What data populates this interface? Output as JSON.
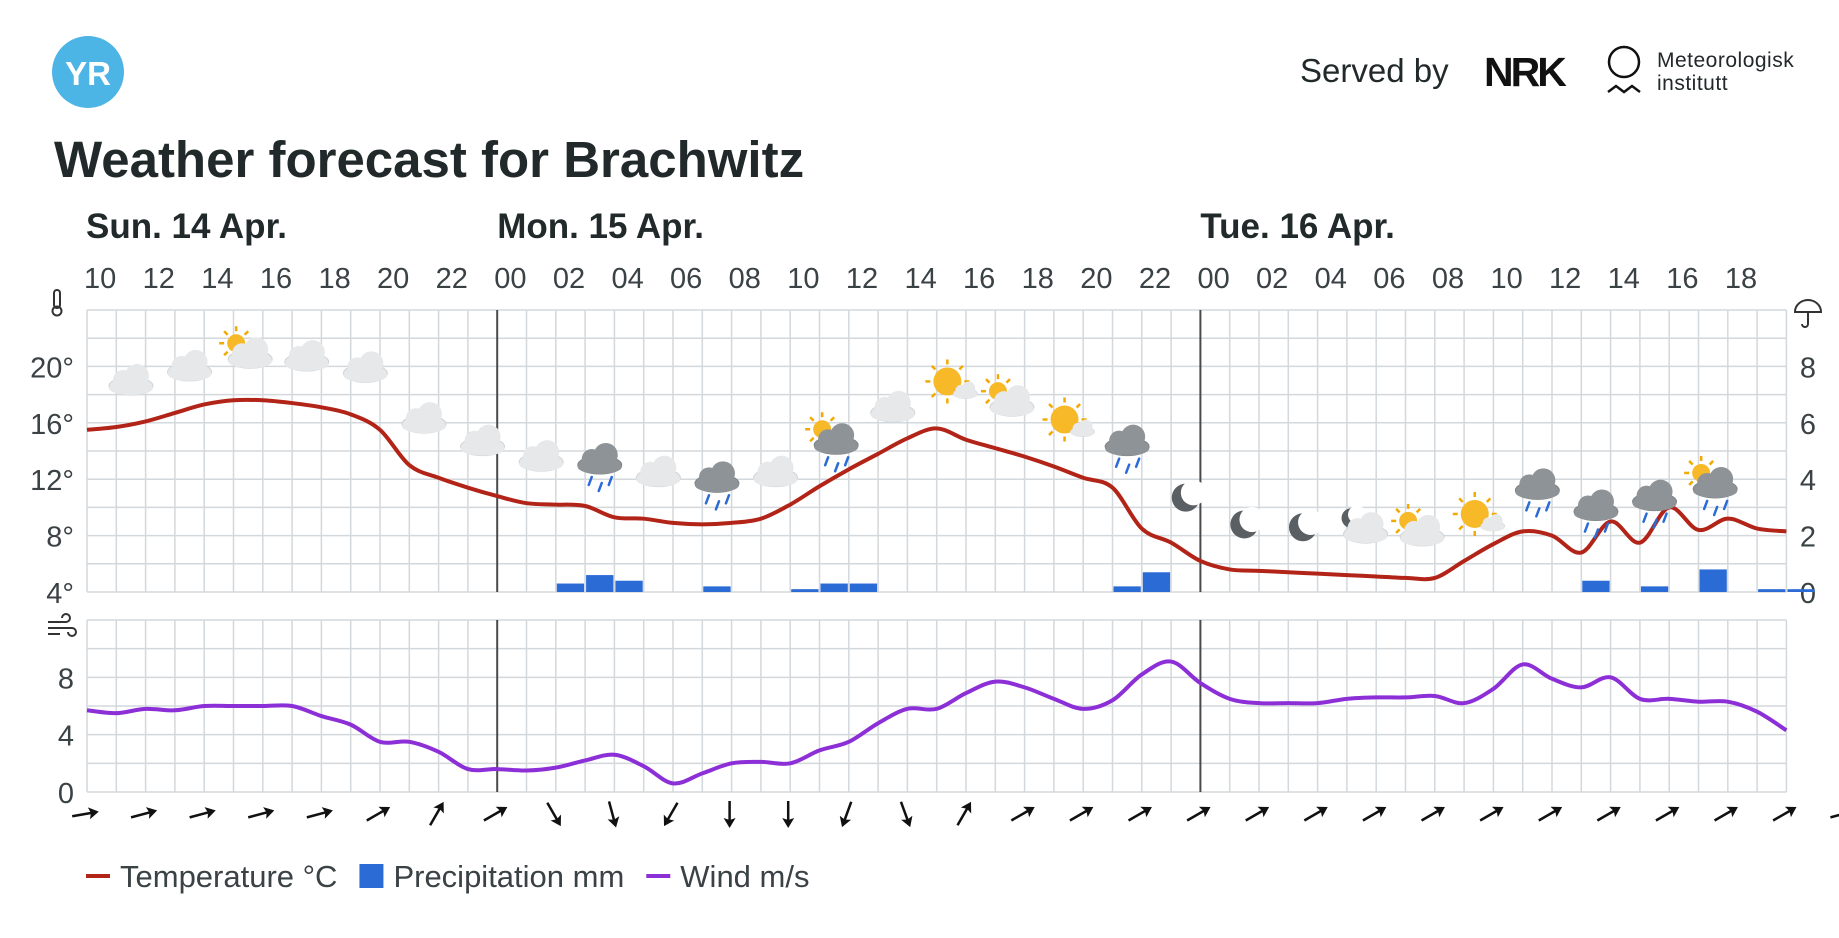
{
  "header": {
    "logo_text": "YR",
    "served_by": "Served by",
    "nrk_logo": "NRK",
    "met_line1": "Meteorologisk",
    "met_line2": "institutt",
    "title": "Weather forecast for Brachwitz"
  },
  "colors": {
    "temperature": "#b22418",
    "precipitation": "#2b6bd6",
    "wind": "#8c2fd6",
    "grid": "#d3d8dc",
    "day_divider": "#4a4a4a",
    "text": "#21292b"
  },
  "chart_data": {
    "type": "line",
    "days": [
      {
        "label": "Sun. 14 Apr.",
        "start_hour": 10
      },
      {
        "label": "Mon. 15 Apr.",
        "start_hour": 24
      },
      {
        "label": "Tue. 16 Apr.",
        "start_hour": 48
      }
    ],
    "hours": [
      10,
      11,
      12,
      13,
      14,
      15,
      16,
      17,
      18,
      19,
      20,
      21,
      22,
      23,
      24,
      25,
      26,
      27,
      28,
      29,
      30,
      31,
      32,
      33,
      34,
      35,
      36,
      37,
      38,
      39,
      40,
      41,
      42,
      43,
      44,
      45,
      46,
      47,
      48,
      49,
      50,
      51,
      52,
      53,
      54,
      55,
      56,
      57,
      58,
      59,
      60,
      61,
      62,
      63,
      64,
      65,
      66,
      67,
      68
    ],
    "hour_tick_labels": [
      {
        "hour": 10,
        "label": "10"
      },
      {
        "hour": 12,
        "label": "12"
      },
      {
        "hour": 14,
        "label": "14"
      },
      {
        "hour": 16,
        "label": "16"
      },
      {
        "hour": 18,
        "label": "18"
      },
      {
        "hour": 20,
        "label": "20"
      },
      {
        "hour": 22,
        "label": "22"
      },
      {
        "hour": 24,
        "label": "00"
      },
      {
        "hour": 26,
        "label": "02"
      },
      {
        "hour": 28,
        "label": "04"
      },
      {
        "hour": 30,
        "label": "06"
      },
      {
        "hour": 32,
        "label": "08"
      },
      {
        "hour": 34,
        "label": "10"
      },
      {
        "hour": 36,
        "label": "12"
      },
      {
        "hour": 38,
        "label": "14"
      },
      {
        "hour": 40,
        "label": "16"
      },
      {
        "hour": 42,
        "label": "18"
      },
      {
        "hour": 44,
        "label": "20"
      },
      {
        "hour": 46,
        "label": "22"
      },
      {
        "hour": 48,
        "label": "00"
      },
      {
        "hour": 50,
        "label": "02"
      },
      {
        "hour": 52,
        "label": "04"
      },
      {
        "hour": 54,
        "label": "06"
      },
      {
        "hour": 56,
        "label": "08"
      },
      {
        "hour": 58,
        "label": "10"
      },
      {
        "hour": 60,
        "label": "12"
      },
      {
        "hour": 62,
        "label": "14"
      },
      {
        "hour": 64,
        "label": "16"
      },
      {
        "hour": 66,
        "label": "18"
      }
    ],
    "temperature": {
      "name": "Temperature °C",
      "y_ticks": [
        "20°",
        "16°",
        "12°",
        "8°",
        "4°"
      ],
      "ylim": [
        4,
        24
      ],
      "values": [
        15.5,
        15.7,
        16.1,
        16.7,
        17.3,
        17.6,
        17.6,
        17.4,
        17.1,
        16.6,
        15.5,
        13.0,
        12.1,
        11.4,
        10.8,
        10.3,
        10.2,
        10.1,
        9.3,
        9.2,
        8.9,
        8.8,
        8.9,
        9.2,
        10.2,
        11.5,
        12.7,
        13.8,
        14.9,
        15.6,
        14.8,
        14.2,
        13.6,
        12.9,
        12.1,
        11.4,
        8.5,
        7.5,
        6.2,
        5.6,
        5.5,
        5.4,
        5.3,
        5.2,
        5.1,
        5.0,
        5.0,
        6.2,
        7.4,
        8.3,
        8.0,
        6.8,
        9.0,
        7.5,
        10.0,
        8.4,
        9.2,
        8.5,
        8.3
      ]
    },
    "precipitation": {
      "name": "Precipitation mm",
      "y_ticks": [
        "8",
        "6",
        "4",
        "2",
        "0"
      ],
      "ylim": [
        0,
        10
      ],
      "values": [
        0,
        0,
        0,
        0,
        0,
        0,
        0,
        0,
        0,
        0,
        0,
        0,
        0,
        0,
        0,
        0,
        0.3,
        0.6,
        0.4,
        0,
        0,
        0.2,
        0,
        0,
        0.1,
        0.3,
        0.3,
        0,
        0,
        0,
        0,
        0,
        0,
        0,
        0,
        0.2,
        0.7,
        0,
        0,
        0,
        0,
        0,
        0,
        0,
        0,
        0,
        0,
        0,
        0,
        0,
        0,
        0.4,
        0,
        0.2,
        0,
        0.8,
        0,
        0.1,
        0.1
      ]
    },
    "wind": {
      "name": "Wind m/s",
      "y_ticks": [
        "8",
        "4",
        "0"
      ],
      "ylim": [
        0,
        12
      ],
      "values": [
        5.7,
        5.5,
        5.8,
        5.7,
        6.0,
        6.0,
        6.0,
        6.0,
        5.3,
        4.7,
        3.5,
        3.5,
        2.8,
        1.6,
        1.6,
        1.5,
        1.7,
        2.2,
        2.6,
        1.8,
        0.6,
        1.3,
        2.0,
        2.1,
        2.0,
        2.9,
        3.5,
        4.8,
        5.8,
        5.8,
        6.9,
        7.7,
        7.3,
        6.5,
        5.8,
        6.4,
        8.2,
        9.1,
        7.6,
        6.5,
        6.2,
        6.2,
        6.2,
        6.5,
        6.6,
        6.6,
        6.7,
        6.2,
        7.2,
        8.9,
        7.9,
        7.3,
        8.0,
        6.5,
        6.5,
        6.3,
        6.3,
        5.6,
        4.3
      ]
    },
    "wind_directions_deg": [
      80,
      75,
      75,
      75,
      75,
      60,
      30,
      60,
      150,
      165,
      210,
      180,
      180,
      200,
      160,
      30,
      60,
      60,
      60,
      60,
      60,
      60,
      60,
      60,
      60,
      60,
      60,
      60,
      60,
      60,
      75,
      75
    ],
    "weather_symbols": [
      {
        "hour": 11,
        "icon": "cloudy"
      },
      {
        "hour": 13,
        "icon": "cloudy"
      },
      {
        "hour": 15,
        "icon": "partly-cloudy-day"
      },
      {
        "hour": 17,
        "icon": "cloudy"
      },
      {
        "hour": 19,
        "icon": "cloudy"
      },
      {
        "hour": 21,
        "icon": "cloudy"
      },
      {
        "hour": 23,
        "icon": "cloudy"
      },
      {
        "hour": 25,
        "icon": "cloudy"
      },
      {
        "hour": 27,
        "icon": "light-rain"
      },
      {
        "hour": 29,
        "icon": "cloudy"
      },
      {
        "hour": 31,
        "icon": "light-rain"
      },
      {
        "hour": 33,
        "icon": "cloudy"
      },
      {
        "hour": 35,
        "icon": "light-rain-showers-day"
      },
      {
        "hour": 37,
        "icon": "cloudy"
      },
      {
        "hour": 39,
        "icon": "fair-day"
      },
      {
        "hour": 41,
        "icon": "partly-cloudy-day"
      },
      {
        "hour": 43,
        "icon": "fair-day"
      },
      {
        "hour": 45,
        "icon": "light-rain"
      },
      {
        "hour": 47,
        "icon": "clear-night"
      },
      {
        "hour": 49,
        "icon": "clear-night"
      },
      {
        "hour": 51,
        "icon": "clear-night"
      },
      {
        "hour": 53,
        "icon": "partly-cloudy-night"
      },
      {
        "hour": 55,
        "icon": "partly-cloudy-day"
      },
      {
        "hour": 57,
        "icon": "fair-day"
      },
      {
        "hour": 59,
        "icon": "light-rain"
      },
      {
        "hour": 61,
        "icon": "light-rain"
      },
      {
        "hour": 63,
        "icon": "light-rain"
      },
      {
        "hour": 65,
        "icon": "light-rain-showers-day"
      }
    ],
    "legend": [
      {
        "label": "Temperature °C",
        "symbol": "line",
        "series": "temperature"
      },
      {
        "label": "Precipitation mm",
        "symbol": "square",
        "series": "precipitation"
      },
      {
        "label": "Wind m/s",
        "symbol": "line",
        "series": "wind"
      }
    ],
    "grid": true,
    "legend_position": "bottom-left"
  }
}
